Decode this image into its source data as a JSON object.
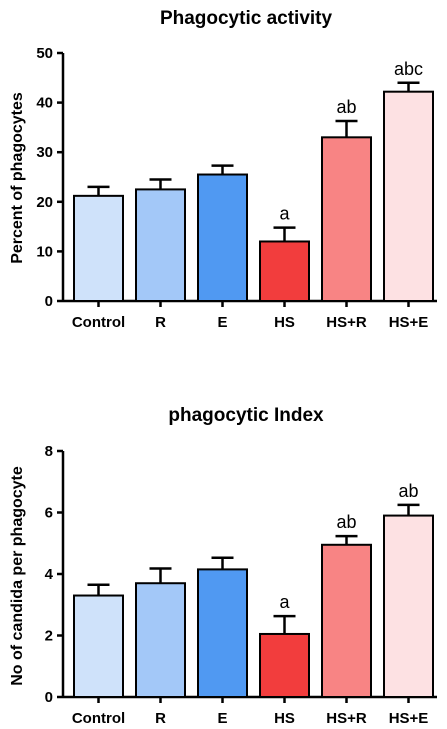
{
  "chart_data": [
    {
      "type": "bar",
      "title": "Phagocytic activity",
      "ylabel": "Percent of phagocytes",
      "xlabel": "",
      "categories": [
        "Control",
        "R",
        "E",
        "HS",
        "HS+R",
        "HS+E"
      ],
      "values": [
        21.2,
        22.5,
        25.5,
        12.0,
        33.0,
        42.2
      ],
      "errors": [
        1.8,
        2.0,
        1.8,
        2.8,
        3.3,
        1.8
      ],
      "annotations": [
        "",
        "",
        "",
        "a",
        "ab",
        "abc"
      ],
      "ylim": [
        0,
        50
      ],
      "yticks": [
        0,
        10,
        20,
        30,
        40,
        50
      ],
      "colors": [
        "#cfe2fa",
        "#a3c8f8",
        "#5099f2",
        "#f23d3d",
        "#f88484",
        "#fde1e3"
      ]
    },
    {
      "type": "bar",
      "title": "phagocytic Index",
      "ylabel": "No of candida per phagocyte",
      "xlabel": "",
      "categories": [
        "Control",
        "R",
        "E",
        "HS",
        "HS+R",
        "HS+E"
      ],
      "values": [
        3.3,
        3.7,
        4.15,
        2.05,
        4.95,
        5.9
      ],
      "errors": [
        0.35,
        0.48,
        0.38,
        0.58,
        0.28,
        0.35
      ],
      "annotations": [
        "",
        "",
        "",
        "a",
        "ab",
        "ab"
      ],
      "ylim": [
        0,
        8
      ],
      "yticks": [
        0,
        2,
        4,
        6,
        8
      ],
      "colors": [
        "#cfe2fa",
        "#a3c8f8",
        "#5099f2",
        "#f23d3d",
        "#f88484",
        "#fde1e3"
      ]
    }
  ]
}
